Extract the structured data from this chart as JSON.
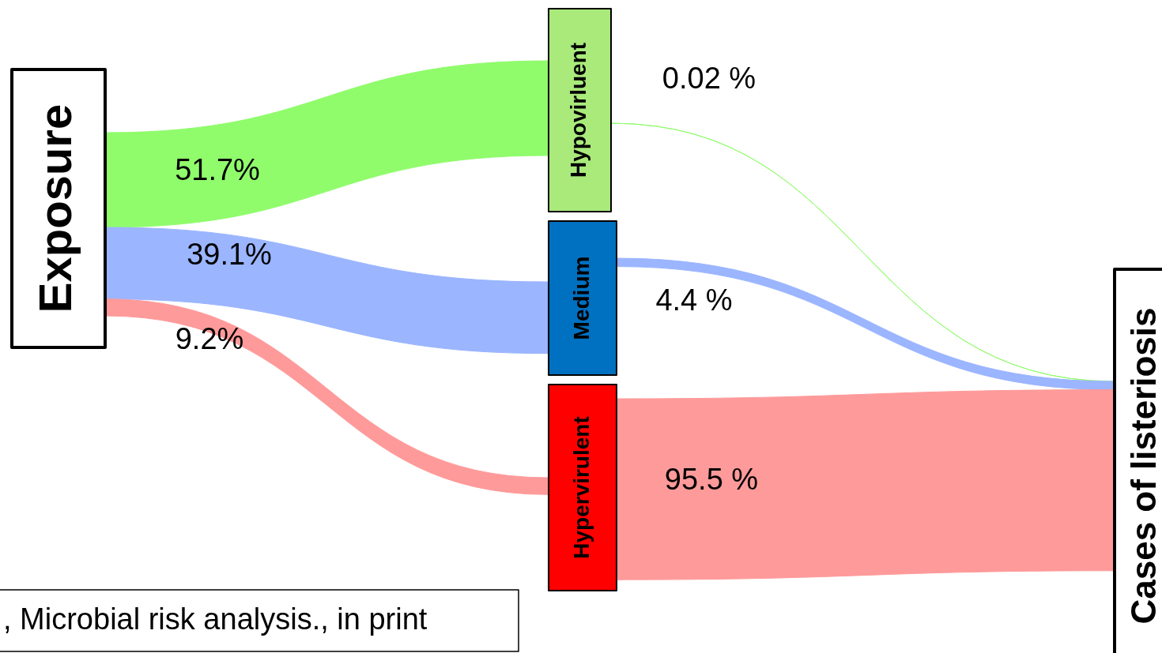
{
  "chart_data": {
    "type": "other",
    "categories": [
      "Hypovirluent",
      "Medium",
      "Hypervirulent"
    ],
    "colors": [
      "#a9ea7b",
      "#0070c0",
      "#ff0000"
    ],
    "series": [
      {
        "name": "Exposure",
        "values": [
          51.7,
          39.1,
          9.2
        ],
        "value_labels": [
          "51.7%",
          "39.1%",
          "9.2%"
        ],
        "colors": [
          "#90fc6c",
          "#9bb5ff",
          "#ff9a9a"
        ]
      },
      {
        "name": "Cases of listeriosis",
        "values": [
          0.02,
          4.4,
          95.5
        ],
        "value_labels": [
          "0.02 %",
          "4.4 %",
          "95.5 %"
        ],
        "colors": [
          "#90fc6c",
          "#9bb5ff",
          "#ff9a9a"
        ]
      }
    ],
    "annotations": [
      ", Microbial risk analysis., in print"
    ]
  }
}
